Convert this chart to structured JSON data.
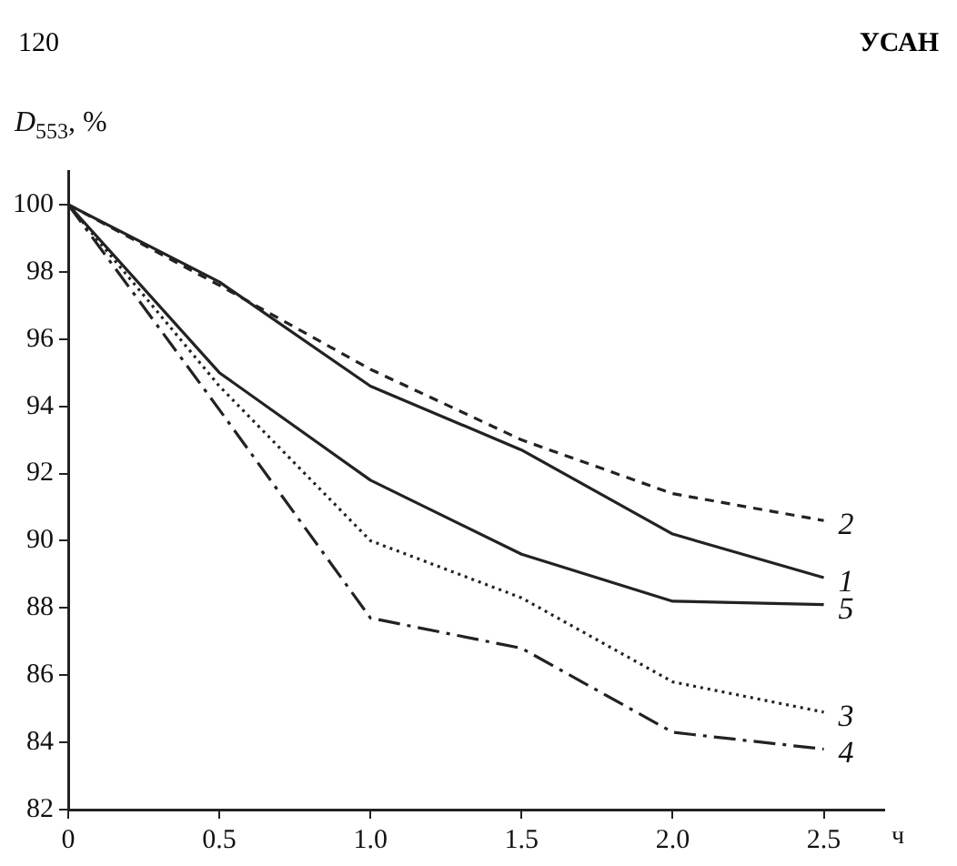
{
  "chart_data": {
    "type": "line",
    "xlabel": "ч",
    "ylabel": "D$_{553}$, %",
    "annotations": [
      "120",
      "УСАН"
    ],
    "x": [
      0,
      0.5,
      1.0,
      1.5,
      2.0,
      2.5
    ],
    "series": [
      {
        "name": "1",
        "color": "#222222",
        "line_style": "solid",
        "values": [
          100,
          97.7,
          94.6,
          92.7,
          90.2,
          88.9
        ]
      },
      {
        "name": "2",
        "color": "#222222",
        "line_style": "dashed",
        "values": [
          100,
          97.6,
          95.1,
          93.0,
          91.4,
          90.6
        ]
      },
      {
        "name": "3",
        "color": "#222222",
        "line_style": "dotted",
        "values": [
          100,
          94.6,
          90.0,
          88.3,
          85.8,
          84.9
        ]
      },
      {
        "name": "4",
        "color": "#222222",
        "line_style": "dashdot",
        "values": [
          100,
          93.9,
          87.7,
          86.8,
          84.3,
          83.8
        ]
      },
      {
        "name": "5",
        "color": "#222222",
        "line_style": "solid",
        "values": [
          100,
          95.0,
          91.8,
          89.6,
          88.2,
          88.1
        ]
      }
    ],
    "xlim": [
      0,
      2.7
    ],
    "ylim": [
      82,
      101
    ],
    "xticks": [
      0,
      {
        "value": 0.5,
        "label": "0.5"
      },
      {
        "value": 1,
        "label": "1.0"
      },
      {
        "value": 1.5,
        "label": "1.5"
      },
      {
        "value": 2,
        "label": "2.0"
      },
      {
        "value": 2.5,
        "label": "2.5"
      }
    ],
    "yticks": [
      82,
      84,
      86,
      88,
      90,
      92,
      94,
      96,
      98,
      100
    ],
    "grid": false,
    "legend": false,
    "marker": "none"
  }
}
